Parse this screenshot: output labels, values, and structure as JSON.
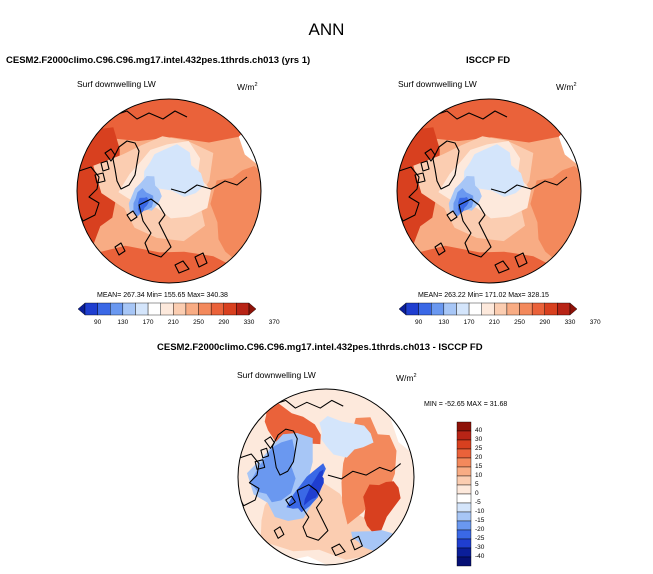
{
  "page": {
    "title": "ANN"
  },
  "panels": {
    "model": {
      "title": "CESM2.F2000climo.C96.C96.mg17.intel.432pes.1thrds.ch013 (yrs 1)",
      "variable": "Surf downwelling LW",
      "units_base": "W/m",
      "units_exp": "2",
      "stats_text": "MEAN= 267.34   Min= 155.65   Max= 340.38"
    },
    "obs": {
      "title": "ISCCP FD",
      "variable": "Surf downwelling LW",
      "units_base": "W/m",
      "units_exp": "2",
      "stats_text": "MEAN= 263.22   Min= 171.02   Max= 328.15"
    },
    "diff": {
      "title": "CESM2.F2000climo.C96.C96.mg17.intel.432pes.1thrds.ch013 - ISCCP FD",
      "variable": "Surf downwelling LW",
      "units_base": "W/m",
      "units_exp": "2",
      "stats_text": "MIN = -52.65  MAX =  31.68"
    }
  },
  "chart_data": [
    {
      "type": "heatmap",
      "projection": "north-polar-stereographic",
      "title": "CESM2.F2000climo.C96.C96.mg17.intel.432pes.1thrds.ch013 (yrs 1)",
      "variable": "Surf downwelling LW",
      "units": "W/m^2",
      "mean": 267.34,
      "min": 155.65,
      "max": 340.38,
      "colorbar": {
        "orientation": "horizontal",
        "tick_labels": [
          "90",
          "130",
          "170",
          "210",
          "250",
          "290",
          "330",
          "370"
        ],
        "colors": [
          "#0b1e99",
          "#1f3ed0",
          "#3a68e6",
          "#6a98f0",
          "#a7c6f6",
          "#d4e5fb",
          "#ffffff",
          "#fde9dc",
          "#fbcdb1",
          "#f8ac84",
          "#f3895c",
          "#ea623a",
          "#d8401f",
          "#b82416",
          "#8e1208"
        ]
      }
    },
    {
      "type": "heatmap",
      "projection": "north-polar-stereographic",
      "title": "ISCCP FD",
      "variable": "Surf downwelling LW",
      "units": "W/m^2",
      "mean": 263.22,
      "min": 171.02,
      "max": 328.15,
      "colorbar": {
        "orientation": "horizontal",
        "tick_labels": [
          "90",
          "130",
          "170",
          "210",
          "250",
          "290",
          "330",
          "370"
        ],
        "colors": [
          "#0b1e99",
          "#1f3ed0",
          "#3a68e6",
          "#6a98f0",
          "#a7c6f6",
          "#d4e5fb",
          "#ffffff",
          "#fde9dc",
          "#fbcdb1",
          "#f8ac84",
          "#f3895c",
          "#ea623a",
          "#d8401f",
          "#b82416",
          "#8e1208"
        ]
      }
    },
    {
      "type": "heatmap",
      "projection": "north-polar-stereographic",
      "title": "CESM2.F2000climo.C96.C96.mg17.intel.432pes.1thrds.ch013 - ISCCP FD",
      "variable": "Surf downwelling LW",
      "units": "W/m^2",
      "min": -52.65,
      "max": 31.68,
      "colorbar": {
        "orientation": "vertical",
        "tick_labels": [
          "40",
          "30",
          "25",
          "20",
          "15",
          "10",
          "5",
          "0",
          "-5",
          "-10",
          "-15",
          "-20",
          "-25",
          "-30",
          "-40"
        ],
        "colors": [
          "#8e1208",
          "#b82416",
          "#d8401f",
          "#ea623a",
          "#f3895c",
          "#f8ac84",
          "#fbcdb1",
          "#fde9dc",
          "#ffffff",
          "#d4e5fb",
          "#a7c6f6",
          "#6a98f0",
          "#3a68e6",
          "#1f3ed0",
          "#0b1e99",
          "#061075"
        ]
      }
    }
  ]
}
